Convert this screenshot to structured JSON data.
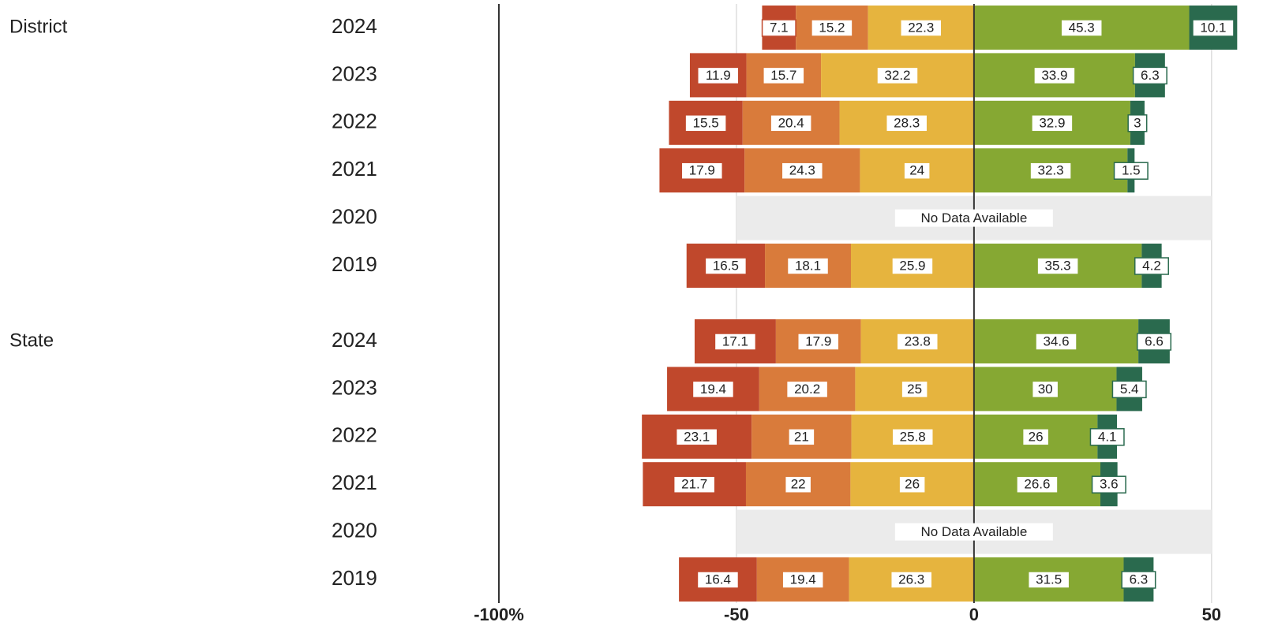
{
  "chart_data": {
    "type": "diverging-bar",
    "xlim": [
      -100,
      60
    ],
    "xticks": [
      {
        "value": -100,
        "label": "-100%"
      },
      -50,
      0,
      50
    ],
    "grid": true,
    "panels": [
      {
        "label": "District",
        "categories": [
          "2024",
          "2023",
          "2022",
          "2021",
          "2020",
          "2019"
        ],
        "annotation": "No Data Available",
        "series": [
          {
            "color": "#c0482c",
            "side": "left",
            "values": [
              7.1,
              11.9,
              15.5,
              17.9,
              null,
              16.5
            ]
          },
          {
            "color": "#d97b3b",
            "side": "left",
            "values": [
              15.2,
              15.7,
              20.4,
              24.3,
              null,
              18.1
            ]
          },
          {
            "color": "#e6b43e",
            "side": "left",
            "values": [
              22.3,
              32.2,
              28.3,
              24,
              null,
              25.9
            ]
          },
          {
            "color": "#86a833",
            "side": "right",
            "values": [
              45.3,
              33.9,
              32.9,
              32.3,
              null,
              35.3
            ]
          },
          {
            "color": "#2a6a4e",
            "side": "right",
            "values": [
              10.1,
              6.3,
              3,
              1.5,
              null,
              4.2
            ]
          }
        ]
      },
      {
        "label": "State",
        "categories": [
          "2024",
          "2023",
          "2022",
          "2021",
          "2020",
          "2019"
        ],
        "annotation": "No Data Available",
        "series": [
          {
            "color": "#c0482c",
            "side": "left",
            "values": [
              17.1,
              19.4,
              23.1,
              21.7,
              null,
              16.4
            ]
          },
          {
            "color": "#d97b3b",
            "side": "left",
            "values": [
              17.9,
              20.2,
              21,
              22,
              null,
              19.4
            ]
          },
          {
            "color": "#e6b43e",
            "side": "left",
            "values": [
              23.8,
              25,
              25.8,
              26,
              null,
              26.3
            ]
          },
          {
            "color": "#86a833",
            "side": "right",
            "values": [
              34.6,
              30,
              26,
              26.6,
              null,
              31.5
            ]
          },
          {
            "color": "#2a6a4e",
            "side": "right",
            "values": [
              6.6,
              5.4,
              4.1,
              3.6,
              null,
              6.3
            ]
          }
        ]
      }
    ]
  }
}
